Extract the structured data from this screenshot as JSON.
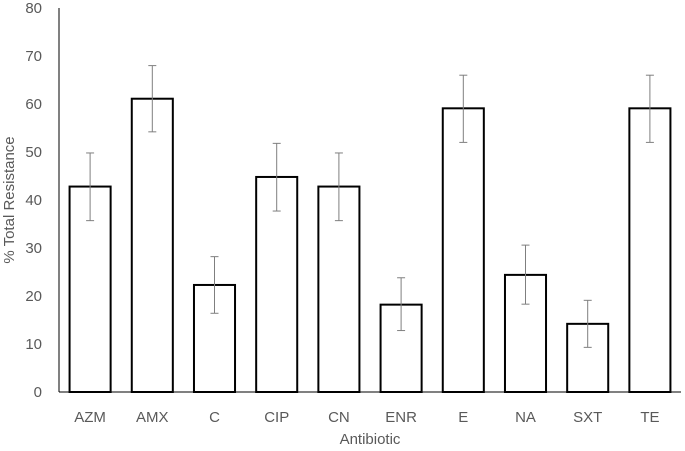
{
  "chart_data": {
    "type": "bar",
    "categories": [
      "AZM",
      "AMX",
      "C",
      "CIP",
      "CN",
      "ENR",
      "E",
      "NA",
      "SXT",
      "TE"
    ],
    "values": [
      42.8,
      61.1,
      22.3,
      44.8,
      42.8,
      18.2,
      59.1,
      24.4,
      14.2,
      59.1
    ],
    "error_low": [
      35.7,
      54.2,
      16.4,
      37.7,
      35.7,
      12.8,
      52.0,
      18.3,
      9.3,
      52.0
    ],
    "error_high": [
      49.8,
      68.0,
      28.2,
      51.8,
      49.8,
      23.8,
      66.0,
      30.6,
      19.1,
      66.0
    ],
    "title": "",
    "xlabel": "Antibiotic",
    "ylabel": "% Total Resistance",
    "ylim": [
      0,
      80
    ],
    "yticks": [
      "0",
      "10",
      "20",
      "30",
      "40",
      "50",
      "60",
      "70",
      "80"
    ],
    "grid": false,
    "legend": "none",
    "bar_fill": "#ffffff",
    "bar_stroke": "#000000",
    "error_bar_color": "#7f7f7f",
    "axis_color": "#000000",
    "text_color": "#595959"
  }
}
